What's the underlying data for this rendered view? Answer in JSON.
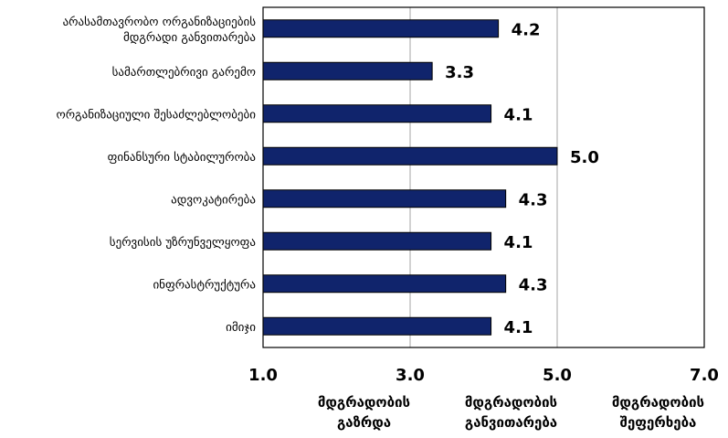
{
  "chart_data": {
    "type": "bar",
    "orientation": "horizontal",
    "categories": [
      [
        "არასამთავრობო ორგანიზაციების",
        "მდგრადი განვითარება"
      ],
      [
        "სამართლებრივი გარემო"
      ],
      [
        "ორგანიზაციული შესაძლებლობები"
      ],
      [
        "ფინანსური სტაბილურობა"
      ],
      [
        "ადვოკატირება"
      ],
      [
        "სერვისის უზრუნველყოფა"
      ],
      [
        "ინფრასტრუქტურა"
      ],
      [
        "იმიჯი"
      ]
    ],
    "values": [
      4.2,
      3.3,
      4.1,
      5.0,
      4.3,
      4.1,
      4.3,
      4.1
    ],
    "value_labels": [
      "4.2",
      "3.3",
      "4.1",
      "5.0",
      "4.3",
      "4.1",
      "4.3",
      "4.1"
    ],
    "xlim": [
      1.0,
      7.0
    ],
    "x_ticks": [
      1.0,
      3.0,
      5.0,
      7.0
    ],
    "x_tick_labels": [
      "1.0",
      "3.0",
      "5.0",
      "7.0"
    ],
    "gridlines_x": [
      3.0,
      5.0
    ],
    "grid": true,
    "bar_color": "#10246c",
    "bar_edge_color": "#000000",
    "plot_border_color": "#000000",
    "gridline_color": "#a6a6a6",
    "x_band_labels": [
      [
        "მდგრადობის",
        "გაზრდა"
      ],
      [
        "მდგრადობის",
        "განვითარება"
      ],
      [
        "მდგრადობის",
        "შეფერხება"
      ]
    ],
    "title": "",
    "xlabel": "",
    "ylabel": ""
  }
}
